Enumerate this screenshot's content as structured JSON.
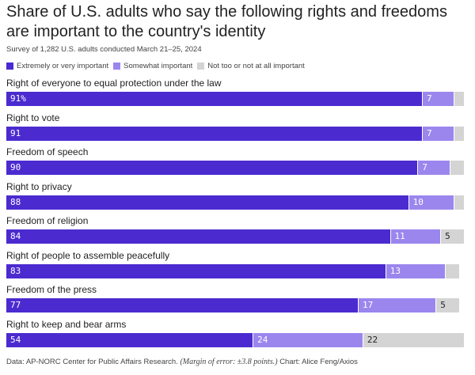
{
  "title": "Share of U.S. adults who say the following rights and freedoms are important to the country's identity",
  "subtitle": "Survey of 1,282 U.S. adults conducted March 21–25, 2024",
  "colors": {
    "extremely": "#4b2bd0",
    "somewhat": "#9b86ee",
    "not": "#d4d4d4"
  },
  "legend": [
    {
      "label": "Extremely or very important",
      "color": "#4b2bd0"
    },
    {
      "label": "Somewhat important",
      "color": "#9b86ee"
    },
    {
      "label": "Not too or not at all important",
      "color": "#d4d4d4"
    }
  ],
  "footer": {
    "source": "Data: AP-NORC Center for Public Affairs Research.",
    "margin": "(Margin of error: ±3.8 points.)",
    "credit": "Chart: Alice Feng/Axios"
  },
  "chart_data": {
    "type": "bar",
    "orientation": "horizontal",
    "stacked": true,
    "xlim": [
      0,
      100
    ],
    "categories": [
      "Right of everyone to equal protection under the law",
      "Right to vote",
      "Freedom of speech",
      "Right to privacy",
      "Freedom of religion",
      "Right of people to assemble peacefully",
      "Freedom of the press",
      "Right to keep and bear arms"
    ],
    "series": [
      {
        "name": "Extremely or very important",
        "values": [
          91,
          91,
          90,
          88,
          84,
          83,
          77,
          54
        ]
      },
      {
        "name": "Somewhat important",
        "values": [
          7,
          7,
          7,
          10,
          11,
          13,
          17,
          24
        ]
      },
      {
        "name": "Not too or not at all important",
        "values": [
          2,
          2,
          3,
          2,
          5,
          3,
          5,
          22
        ]
      }
    ],
    "value_labels": [
      [
        "91%",
        "7",
        ""
      ],
      [
        "91",
        "7",
        ""
      ],
      [
        "90",
        "7",
        ""
      ],
      [
        "88",
        "10",
        ""
      ],
      [
        "84",
        "11",
        "5"
      ],
      [
        "83",
        "13",
        ""
      ],
      [
        "77",
        "17",
        "5"
      ],
      [
        "54",
        "24",
        "22"
      ]
    ]
  }
}
